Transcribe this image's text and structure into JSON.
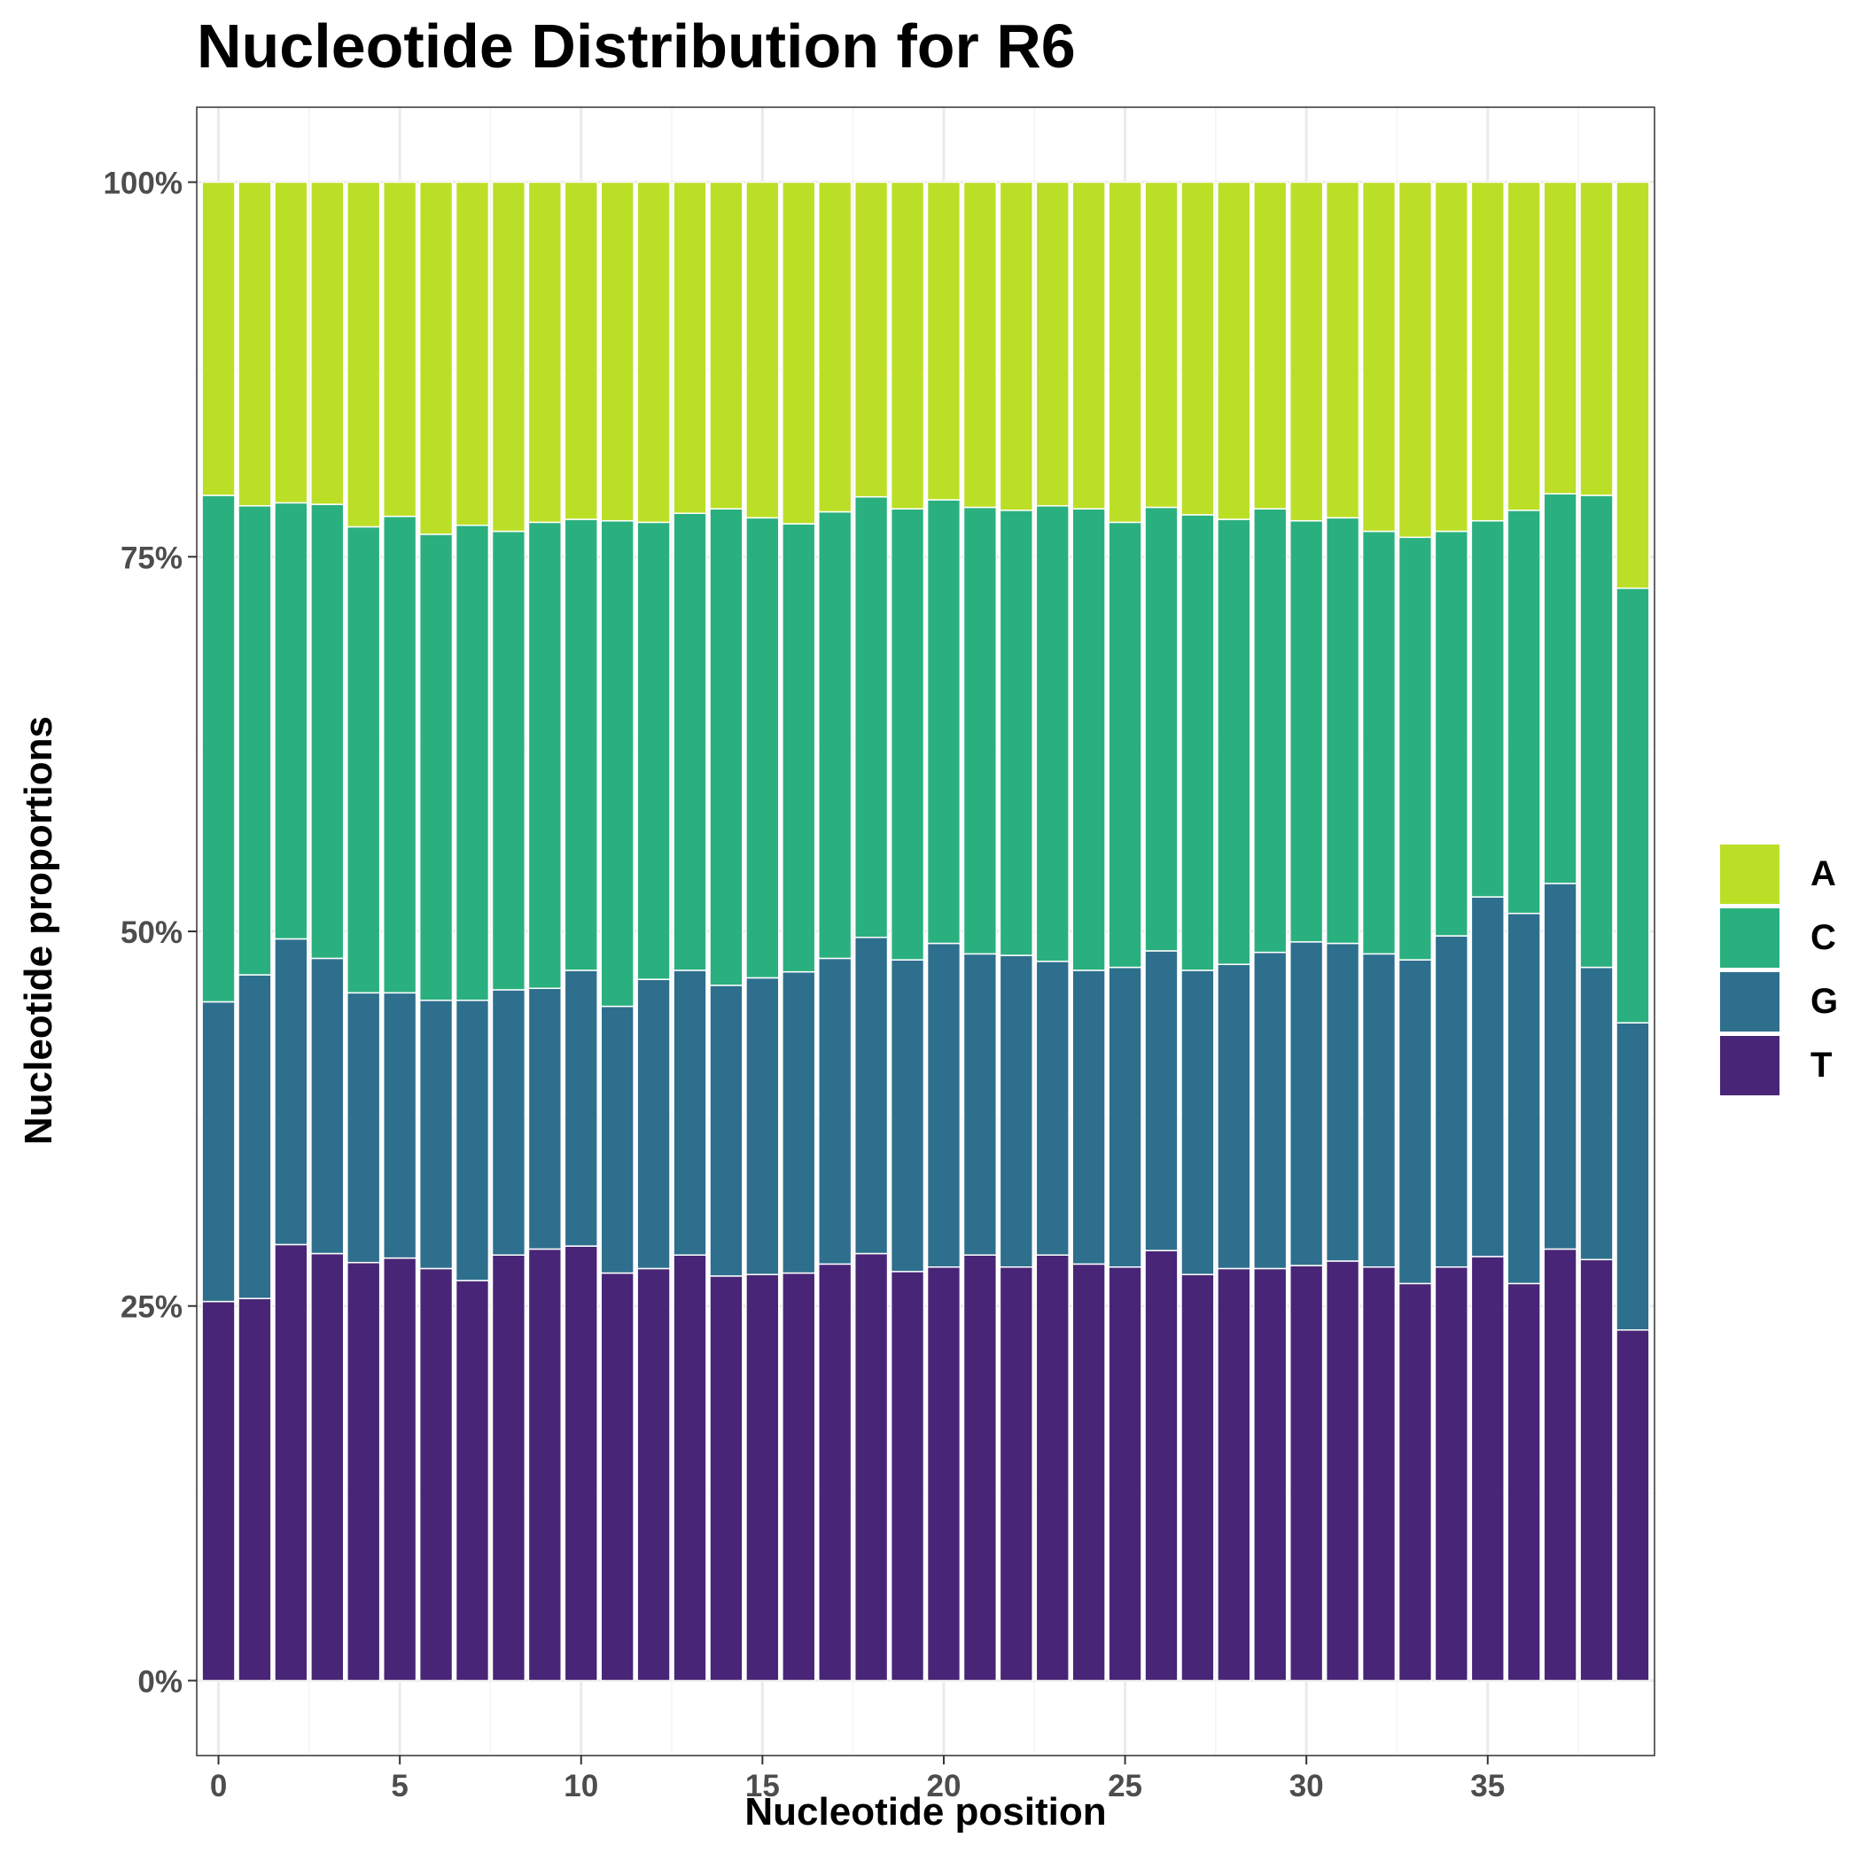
{
  "chart_data": {
    "type": "bar",
    "stacked": true,
    "title": "Nucleotide Distribution for R6",
    "xlabel": "Nucleotide position",
    "ylabel": "Nucleotide proportions",
    "x": [
      0,
      1,
      2,
      3,
      4,
      5,
      6,
      7,
      8,
      9,
      10,
      11,
      12,
      13,
      14,
      15,
      16,
      17,
      18,
      19,
      20,
      21,
      22,
      23,
      24,
      25,
      26,
      27,
      28,
      29,
      30,
      31,
      32,
      33,
      34,
      35,
      36,
      37,
      38,
      39
    ],
    "x_ticks": [
      "0",
      "5",
      "10",
      "15",
      "20",
      "25",
      "30",
      "35"
    ],
    "y_ticks": [
      "0%",
      "25%",
      "50%",
      "75%",
      "100%"
    ],
    "xlim": [
      -0.6,
      39.6
    ],
    "ylim": [
      -0.05,
      1.05
    ],
    "grid": true,
    "legend_position": "right",
    "series": [
      {
        "name": "T",
        "color": "#482576",
        "values": [
          0.253,
          0.255,
          0.291,
          0.285,
          0.279,
          0.282,
          0.275,
          0.267,
          0.284,
          0.288,
          0.29,
          0.272,
          0.275,
          0.284,
          0.27,
          0.271,
          0.272,
          0.278,
          0.285,
          0.273,
          0.276,
          0.284,
          0.276,
          0.284,
          0.278,
          0.276,
          0.287,
          0.271,
          0.275,
          0.275,
          0.277,
          0.28,
          0.276,
          0.265,
          0.276,
          0.283,
          0.265,
          0.288,
          0.281,
          0.234
        ]
      },
      {
        "name": "G",
        "color": "#2E6F8E",
        "values": [
          0.2,
          0.216,
          0.204,
          0.197,
          0.18,
          0.177,
          0.179,
          0.187,
          0.177,
          0.174,
          0.184,
          0.178,
          0.193,
          0.19,
          0.194,
          0.198,
          0.201,
          0.204,
          0.211,
          0.208,
          0.216,
          0.201,
          0.208,
          0.196,
          0.196,
          0.2,
          0.2,
          0.203,
          0.203,
          0.211,
          0.216,
          0.212,
          0.209,
          0.216,
          0.221,
          0.24,
          0.247,
          0.244,
          0.195,
          0.205
        ]
      },
      {
        "name": "C",
        "color": "#2AB07F",
        "values": [
          0.338,
          0.313,
          0.291,
          0.303,
          0.311,
          0.318,
          0.311,
          0.317,
          0.306,
          0.311,
          0.301,
          0.324,
          0.305,
          0.305,
          0.318,
          0.307,
          0.299,
          0.298,
          0.294,
          0.301,
          0.296,
          0.298,
          0.297,
          0.304,
          0.308,
          0.297,
          0.296,
          0.304,
          0.297,
          0.296,
          0.281,
          0.284,
          0.282,
          0.282,
          0.27,
          0.251,
          0.269,
          0.26,
          0.315,
          0.29
        ]
      },
      {
        "name": "A",
        "color": "#BBDF27",
        "values": [
          0.209,
          0.216,
          0.214,
          0.215,
          0.23,
          0.223,
          0.235,
          0.229,
          0.233,
          0.227,
          0.225,
          0.226,
          0.227,
          0.221,
          0.218,
          0.224,
          0.228,
          0.22,
          0.21,
          0.218,
          0.212,
          0.217,
          0.219,
          0.216,
          0.218,
          0.227,
          0.217,
          0.222,
          0.225,
          0.218,
          0.226,
          0.224,
          0.233,
          0.237,
          0.233,
          0.226,
          0.219,
          0.208,
          0.209,
          0.271
        ]
      }
    ],
    "legend_order": [
      "A",
      "C",
      "G",
      "T"
    ]
  }
}
